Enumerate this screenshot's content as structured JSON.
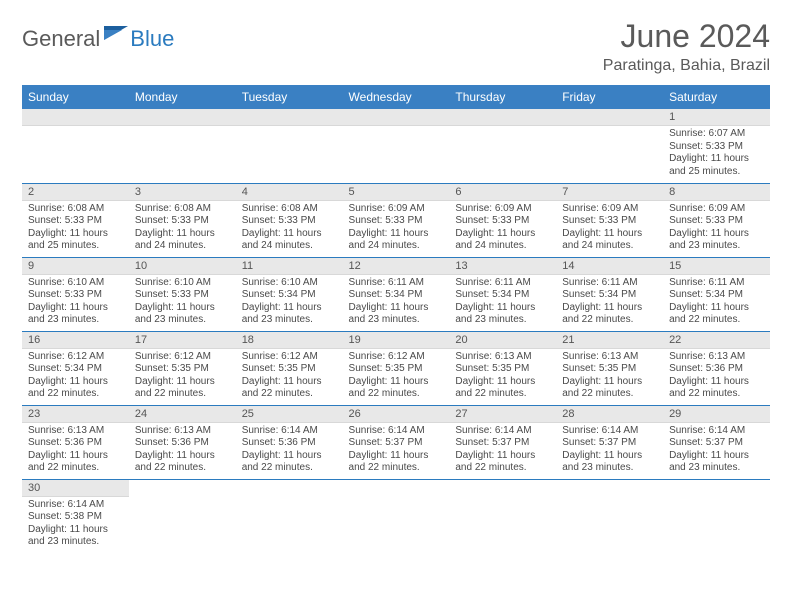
{
  "logo": {
    "text1": "General",
    "text2": "Blue",
    "flag_color_dark": "#1c5f9e",
    "flag_color_light": "#3a80c3"
  },
  "header": {
    "month_title": "June 2024",
    "location": "Paratinga, Bahia, Brazil"
  },
  "colors": {
    "header_bg": "#3a80c3",
    "header_text": "#ffffff",
    "daynum_bg": "#e8e8e8",
    "cell_border": "#2b7bbf",
    "text": "#4a4a4a"
  },
  "day_headers": [
    "Sunday",
    "Monday",
    "Tuesday",
    "Wednesday",
    "Thursday",
    "Friday",
    "Saturday"
  ],
  "weeks": [
    [
      null,
      null,
      null,
      null,
      null,
      null,
      {
        "n": "1",
        "sr": "Sunrise: 6:07 AM",
        "ss": "Sunset: 5:33 PM",
        "dl": "Daylight: 11 hours and 25 minutes."
      }
    ],
    [
      {
        "n": "2",
        "sr": "Sunrise: 6:08 AM",
        "ss": "Sunset: 5:33 PM",
        "dl": "Daylight: 11 hours and 25 minutes."
      },
      {
        "n": "3",
        "sr": "Sunrise: 6:08 AM",
        "ss": "Sunset: 5:33 PM",
        "dl": "Daylight: 11 hours and 24 minutes."
      },
      {
        "n": "4",
        "sr": "Sunrise: 6:08 AM",
        "ss": "Sunset: 5:33 PM",
        "dl": "Daylight: 11 hours and 24 minutes."
      },
      {
        "n": "5",
        "sr": "Sunrise: 6:09 AM",
        "ss": "Sunset: 5:33 PM",
        "dl": "Daylight: 11 hours and 24 minutes."
      },
      {
        "n": "6",
        "sr": "Sunrise: 6:09 AM",
        "ss": "Sunset: 5:33 PM",
        "dl": "Daylight: 11 hours and 24 minutes."
      },
      {
        "n": "7",
        "sr": "Sunrise: 6:09 AM",
        "ss": "Sunset: 5:33 PM",
        "dl": "Daylight: 11 hours and 24 minutes."
      },
      {
        "n": "8",
        "sr": "Sunrise: 6:09 AM",
        "ss": "Sunset: 5:33 PM",
        "dl": "Daylight: 11 hours and 23 minutes."
      }
    ],
    [
      {
        "n": "9",
        "sr": "Sunrise: 6:10 AM",
        "ss": "Sunset: 5:33 PM",
        "dl": "Daylight: 11 hours and 23 minutes."
      },
      {
        "n": "10",
        "sr": "Sunrise: 6:10 AM",
        "ss": "Sunset: 5:33 PM",
        "dl": "Daylight: 11 hours and 23 minutes."
      },
      {
        "n": "11",
        "sr": "Sunrise: 6:10 AM",
        "ss": "Sunset: 5:34 PM",
        "dl": "Daylight: 11 hours and 23 minutes."
      },
      {
        "n": "12",
        "sr": "Sunrise: 6:11 AM",
        "ss": "Sunset: 5:34 PM",
        "dl": "Daylight: 11 hours and 23 minutes."
      },
      {
        "n": "13",
        "sr": "Sunrise: 6:11 AM",
        "ss": "Sunset: 5:34 PM",
        "dl": "Daylight: 11 hours and 23 minutes."
      },
      {
        "n": "14",
        "sr": "Sunrise: 6:11 AM",
        "ss": "Sunset: 5:34 PM",
        "dl": "Daylight: 11 hours and 22 minutes."
      },
      {
        "n": "15",
        "sr": "Sunrise: 6:11 AM",
        "ss": "Sunset: 5:34 PM",
        "dl": "Daylight: 11 hours and 22 minutes."
      }
    ],
    [
      {
        "n": "16",
        "sr": "Sunrise: 6:12 AM",
        "ss": "Sunset: 5:34 PM",
        "dl": "Daylight: 11 hours and 22 minutes."
      },
      {
        "n": "17",
        "sr": "Sunrise: 6:12 AM",
        "ss": "Sunset: 5:35 PM",
        "dl": "Daylight: 11 hours and 22 minutes."
      },
      {
        "n": "18",
        "sr": "Sunrise: 6:12 AM",
        "ss": "Sunset: 5:35 PM",
        "dl": "Daylight: 11 hours and 22 minutes."
      },
      {
        "n": "19",
        "sr": "Sunrise: 6:12 AM",
        "ss": "Sunset: 5:35 PM",
        "dl": "Daylight: 11 hours and 22 minutes."
      },
      {
        "n": "20",
        "sr": "Sunrise: 6:13 AM",
        "ss": "Sunset: 5:35 PM",
        "dl": "Daylight: 11 hours and 22 minutes."
      },
      {
        "n": "21",
        "sr": "Sunrise: 6:13 AM",
        "ss": "Sunset: 5:35 PM",
        "dl": "Daylight: 11 hours and 22 minutes."
      },
      {
        "n": "22",
        "sr": "Sunrise: 6:13 AM",
        "ss": "Sunset: 5:36 PM",
        "dl": "Daylight: 11 hours and 22 minutes."
      }
    ],
    [
      {
        "n": "23",
        "sr": "Sunrise: 6:13 AM",
        "ss": "Sunset: 5:36 PM",
        "dl": "Daylight: 11 hours and 22 minutes."
      },
      {
        "n": "24",
        "sr": "Sunrise: 6:13 AM",
        "ss": "Sunset: 5:36 PM",
        "dl": "Daylight: 11 hours and 22 minutes."
      },
      {
        "n": "25",
        "sr": "Sunrise: 6:14 AM",
        "ss": "Sunset: 5:36 PM",
        "dl": "Daylight: 11 hours and 22 minutes."
      },
      {
        "n": "26",
        "sr": "Sunrise: 6:14 AM",
        "ss": "Sunset: 5:37 PM",
        "dl": "Daylight: 11 hours and 22 minutes."
      },
      {
        "n": "27",
        "sr": "Sunrise: 6:14 AM",
        "ss": "Sunset: 5:37 PM",
        "dl": "Daylight: 11 hours and 22 minutes."
      },
      {
        "n": "28",
        "sr": "Sunrise: 6:14 AM",
        "ss": "Sunset: 5:37 PM",
        "dl": "Daylight: 11 hours and 23 minutes."
      },
      {
        "n": "29",
        "sr": "Sunrise: 6:14 AM",
        "ss": "Sunset: 5:37 PM",
        "dl": "Daylight: 11 hours and 23 minutes."
      }
    ],
    [
      {
        "n": "30",
        "sr": "Sunrise: 6:14 AM",
        "ss": "Sunset: 5:38 PM",
        "dl": "Daylight: 11 hours and 23 minutes."
      },
      null,
      null,
      null,
      null,
      null,
      null
    ]
  ]
}
